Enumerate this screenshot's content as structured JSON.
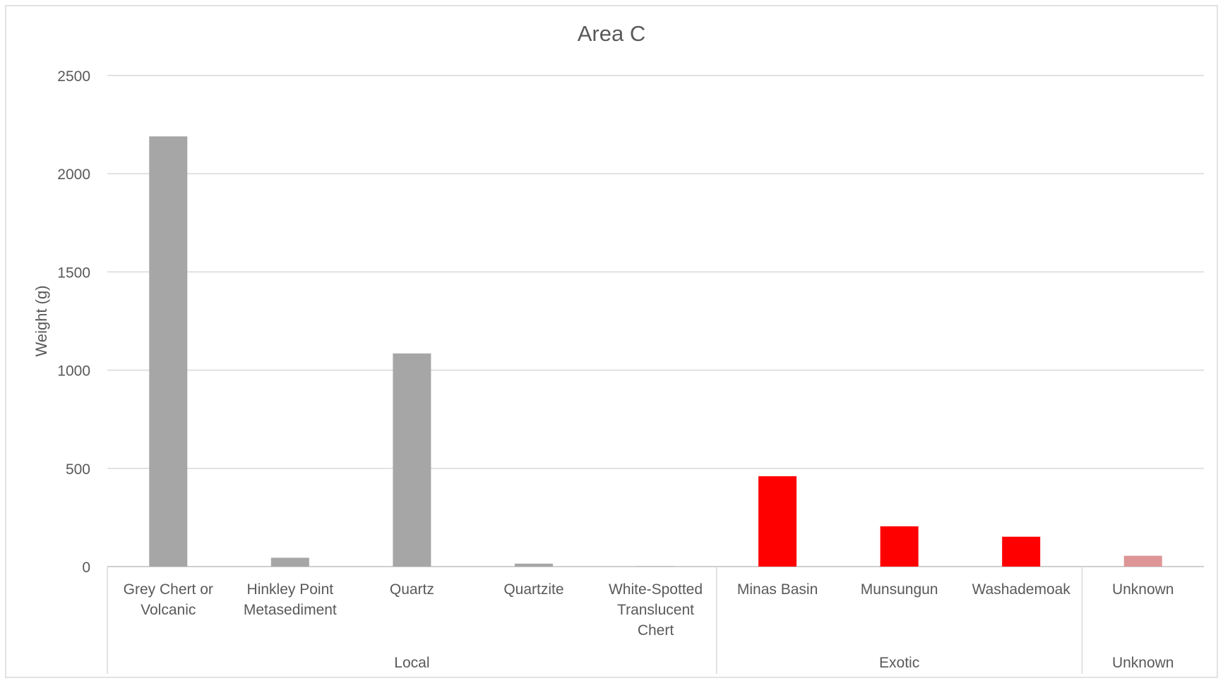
{
  "chart_data": {
    "type": "bar",
    "title": "Area C",
    "xlabel": "",
    "ylabel": "Weight (g)",
    "ylim": [
      0,
      2500
    ],
    "yticks": [
      0,
      500,
      1000,
      1500,
      2000,
      2500
    ],
    "grid": true,
    "legend": "none",
    "categories": [
      "Grey Chert or Volcanic",
      "Hinkley Point Metasediment",
      "Quartz",
      "Quartzite",
      "White-Spotted Translucent Chert",
      "Minas Basin",
      "Munsungun",
      "Washademoak",
      "Unknown"
    ],
    "category_lines": [
      [
        "Grey Chert or",
        "Volcanic"
      ],
      [
        "Hinkley Point",
        "Metasediment"
      ],
      [
        "Quartz"
      ],
      [
        "Quartzite"
      ],
      [
        "White-Spotted",
        "Translucent",
        "Chert"
      ],
      [
        "Minas Basin"
      ],
      [
        "Munsungun"
      ],
      [
        "Washademoak"
      ],
      [
        "Unknown"
      ]
    ],
    "values": [
      2190,
      45,
      1085,
      15,
      2,
      460,
      205,
      152,
      55
    ],
    "bar_colors": [
      "#a6a6a6",
      "#a6a6a6",
      "#a6a6a6",
      "#a6a6a6",
      "#a6a6a6",
      "#ff0000",
      "#ff0000",
      "#ff0000",
      "#dd9595"
    ],
    "groups": [
      {
        "label": "Local",
        "start": 0,
        "end": 4
      },
      {
        "label": "Exotic",
        "start": 5,
        "end": 7
      },
      {
        "label": "Unknown",
        "start": 8,
        "end": 8
      }
    ]
  },
  "colors": {
    "grid": "#d9d9d9",
    "axis": "#bfbfbf",
    "text": "#595959",
    "background": "#ffffff"
  }
}
